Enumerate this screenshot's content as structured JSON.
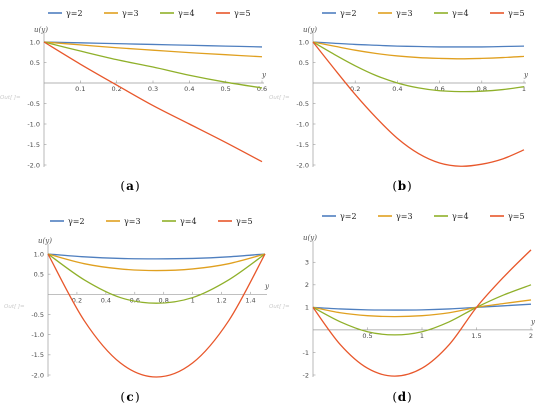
{
  "legend_symbol": "γ",
  "out_label": "Out[ ]=",
  "colors": {
    "γ=2": "#4f7fbf",
    "γ=3": "#e0a020",
    "γ=4": "#8fb02a",
    "γ=5": "#e8572b"
  },
  "chart_data": [
    {
      "panel": "a",
      "caption": "a",
      "type": "line",
      "xlabel": "y",
      "ylabel": "u(y)",
      "xlim": [
        0,
        0.6
      ],
      "ylim": [
        -2.0,
        1.0
      ],
      "xticks": [
        0.1,
        0.2,
        0.3,
        0.4,
        0.5,
        0.6
      ],
      "yticks": [
        -2.0,
        -1.5,
        -1.0,
        -0.5,
        0.5,
        1.0
      ],
      "legend": "top",
      "series": [
        {
          "name": "γ=2",
          "x": [
            0,
            0.1,
            0.2,
            0.3,
            0.4,
            0.5,
            0.6
          ],
          "values": [
            1.0,
            0.98,
            0.96,
            0.94,
            0.92,
            0.9,
            0.88
          ]
        },
        {
          "name": "γ=3",
          "x": [
            0,
            0.1,
            0.2,
            0.3,
            0.4,
            0.5,
            0.6
          ],
          "values": [
            1.0,
            0.93,
            0.86,
            0.8,
            0.74,
            0.69,
            0.64
          ]
        },
        {
          "name": "γ=4",
          "x": [
            0,
            0.1,
            0.2,
            0.3,
            0.4,
            0.5,
            0.6
          ],
          "values": [
            1.0,
            0.78,
            0.57,
            0.39,
            0.19,
            0.02,
            -0.12
          ]
        },
        {
          "name": "γ=5",
          "x": [
            0,
            0.1,
            0.2,
            0.3,
            0.4,
            0.5,
            0.6
          ],
          "values": [
            1.0,
            0.46,
            -0.05,
            -0.55,
            -1.0,
            -1.45,
            -1.92
          ]
        }
      ]
    },
    {
      "panel": "b",
      "caption": "b",
      "type": "line",
      "xlabel": "y",
      "ylabel": "u(y)",
      "xlim": [
        0,
        1.0
      ],
      "ylim": [
        -2.0,
        1.0
      ],
      "xticks": [
        0.2,
        0.4,
        0.6,
        0.8,
        1.0
      ],
      "yticks": [
        -2.0,
        -1.5,
        -1.0,
        -0.5,
        0.5,
        1.0
      ],
      "legend": "top",
      "series": [
        {
          "name": "γ=2",
          "x": [
            0,
            0.1,
            0.2,
            0.3,
            0.4,
            0.5,
            0.6,
            0.7,
            0.8,
            0.9,
            1.0
          ],
          "values": [
            1.0,
            0.97,
            0.94,
            0.92,
            0.9,
            0.89,
            0.88,
            0.88,
            0.88,
            0.89,
            0.9
          ]
        },
        {
          "name": "γ=3",
          "x": [
            0,
            0.1,
            0.2,
            0.3,
            0.4,
            0.5,
            0.6,
            0.7,
            0.8,
            0.9,
            1.0
          ],
          "values": [
            1.0,
            0.9,
            0.8,
            0.72,
            0.66,
            0.62,
            0.6,
            0.59,
            0.6,
            0.62,
            0.65
          ]
        },
        {
          "name": "γ=4",
          "x": [
            0,
            0.1,
            0.2,
            0.3,
            0.4,
            0.5,
            0.6,
            0.7,
            0.8,
            0.9,
            1.0
          ],
          "values": [
            1.0,
            0.7,
            0.42,
            0.18,
            0.0,
            -0.12,
            -0.19,
            -0.21,
            -0.2,
            -0.16,
            -0.09
          ]
        },
        {
          "name": "γ=5",
          "x": [
            0,
            0.1,
            0.2,
            0.3,
            0.4,
            0.5,
            0.6,
            0.7,
            0.8,
            0.9,
            1.0
          ],
          "values": [
            1.0,
            0.35,
            -0.28,
            -0.85,
            -1.35,
            -1.72,
            -1.95,
            -2.03,
            -1.98,
            -1.85,
            -1.63
          ]
        }
      ]
    },
    {
      "panel": "c",
      "caption": "c",
      "type": "line",
      "xlabel": "y",
      "ylabel": "u(y)",
      "xlim": [
        0,
        1.5
      ],
      "ylim": [
        -2.0,
        1.0
      ],
      "xticks": [
        0.2,
        0.4,
        0.6,
        0.8,
        1.0,
        1.2,
        1.4
      ],
      "yticks": [
        -2.0,
        -1.5,
        -1.0,
        -0.5,
        0.5,
        1.0
      ],
      "legend": "top",
      "series": [
        {
          "name": "γ=2",
          "x": [
            0,
            0.25,
            0.5,
            0.75,
            1.0,
            1.25,
            1.5
          ],
          "values": [
            1.0,
            0.93,
            0.89,
            0.88,
            0.89,
            0.93,
            1.0
          ]
        },
        {
          "name": "γ=3",
          "x": [
            0,
            0.25,
            0.5,
            0.75,
            1.0,
            1.25,
            1.5
          ],
          "values": [
            1.0,
            0.76,
            0.63,
            0.59,
            0.63,
            0.76,
            1.0
          ]
        },
        {
          "name": "γ=4",
          "x": [
            0,
            0.25,
            0.5,
            0.75,
            1.0,
            1.25,
            1.5
          ],
          "values": [
            1.0,
            0.36,
            -0.08,
            -0.22,
            -0.08,
            0.36,
            1.0
          ]
        },
        {
          "name": "γ=5",
          "x": [
            0,
            0.25,
            0.5,
            0.75,
            1.0,
            1.25,
            1.5
          ],
          "values": [
            1.0,
            -0.65,
            -1.7,
            -2.05,
            -1.7,
            -0.65,
            1.0
          ]
        }
      ]
    },
    {
      "panel": "d",
      "caption": "d",
      "type": "line",
      "xlabel": "y",
      "ylabel": "u(y)",
      "xlim": [
        0,
        2.0
      ],
      "ylim": [
        -2.0,
        3.5
      ],
      "xticks": [
        0.5,
        1.0,
        1.5,
        2.0
      ],
      "yticks": [
        -2,
        -1,
        1,
        2,
        3
      ],
      "legend": "top",
      "series": [
        {
          "name": "γ=2",
          "x": [
            0,
            0.25,
            0.5,
            0.75,
            1.0,
            1.25,
            1.5,
            1.75,
            2.0
          ],
          "values": [
            1.0,
            0.93,
            0.89,
            0.88,
            0.89,
            0.93,
            1.0,
            1.07,
            1.14
          ]
        },
        {
          "name": "γ=3",
          "x": [
            0,
            0.25,
            0.5,
            0.75,
            1.0,
            1.25,
            1.5,
            1.75,
            2.0
          ],
          "values": [
            1.0,
            0.76,
            0.63,
            0.59,
            0.63,
            0.76,
            1.0,
            1.17,
            1.33
          ]
        },
        {
          "name": "γ=4",
          "x": [
            0,
            0.25,
            0.5,
            0.75,
            1.0,
            1.25,
            1.5,
            1.75,
            2.0
          ],
          "values": [
            1.0,
            0.36,
            -0.08,
            -0.22,
            -0.08,
            0.36,
            1.0,
            1.55,
            2.0
          ]
        },
        {
          "name": "γ=5",
          "x": [
            0,
            0.25,
            0.5,
            0.75,
            1.0,
            1.25,
            1.5,
            1.75,
            2.0
          ],
          "values": [
            1.0,
            -0.65,
            -1.7,
            -2.05,
            -1.7,
            -0.65,
            1.0,
            2.35,
            3.55
          ]
        }
      ]
    }
  ]
}
